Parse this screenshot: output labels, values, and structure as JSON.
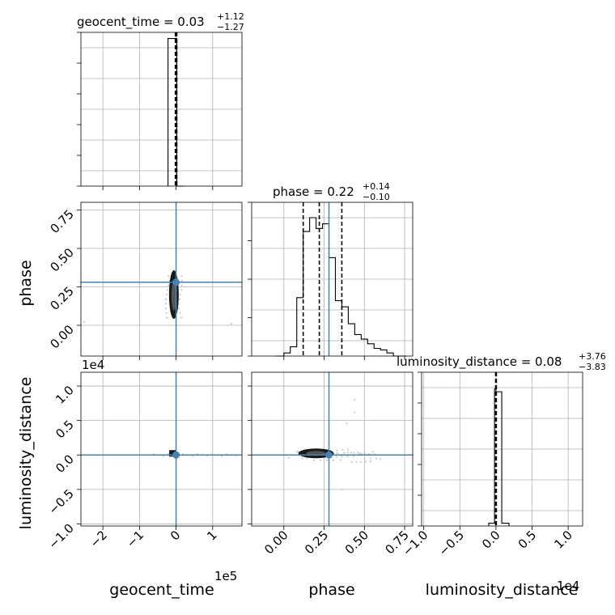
{
  "chart_data": {
    "type": "corner",
    "parameters": [
      "geocent_time",
      "phase",
      "luminosity_distance"
    ],
    "axis_labels": {
      "geocent_time": "geocent_time",
      "phase": "phase",
      "luminosity_distance": "luminosity_distance"
    },
    "offsets": {
      "geocent_time": "1e5",
      "luminosity_distance": "1e4",
      "luminosity_distance_y": "1e4"
    },
    "titles": [
      {
        "param": "geocent_time",
        "prefix": "geocent_time = 0.03",
        "plus": "+1.12",
        "minus": "−1.27"
      },
      {
        "param": "phase",
        "prefix": "phase = 0.22",
        "plus": "+0.14",
        "minus": "−0.10"
      },
      {
        "param": "luminosity_distance",
        "prefix": "luminosity_distance = 0.08",
        "plus": "+3.76",
        "minus": "−3.83"
      }
    ],
    "ranges": {
      "geocent_time": [
        -2.6,
        1.8
      ],
      "phase": [
        -0.2,
        0.8
      ],
      "luminosity_distance": [
        -1.03,
        1.2
      ]
    },
    "ticks": {
      "geocent_time": [
        "−2",
        "−1",
        "0",
        "1"
      ],
      "geocent_time_values": [
        -2,
        -1,
        0,
        1
      ],
      "phase_x": [
        "0.00",
        "0.25",
        "0.50",
        "0.75"
      ],
      "phase_x_values": [
        0.0,
        0.25,
        0.5,
        0.75
      ],
      "phase_y": [
        "0.00",
        "0.25",
        "0.50",
        "0.75"
      ],
      "phase_y_values": [
        0.0,
        0.25,
        0.5,
        0.75
      ],
      "luminosity_distance": [
        "−1.0",
        "−0.5",
        "0.0",
        "0.5",
        "1.0"
      ],
      "luminosity_distance_values": [
        -1.0,
        -0.5,
        0.0,
        0.5,
        1.0
      ]
    },
    "truths": {
      "geocent_time": 0.0,
      "phase": 0.28,
      "luminosity_distance": 0.0
    },
    "quantiles": {
      "geocent_time": [
        -0.02,
        0.0,
        0.02
      ],
      "phase": [
        0.12,
        0.22,
        0.36
      ],
      "luminosity_distance": [
        -0.005,
        0.0,
        0.005
      ]
    },
    "histograms": {
      "geocent_time": {
        "edges": [
          -0.22,
          -0.02,
          0.02,
          0.22
        ],
        "counts": [
          1.0,
          1.0,
          0.0
        ]
      },
      "phase": {
        "edges": [
          -0.05,
          0.0,
          0.04,
          0.08,
          0.12,
          0.16,
          0.2,
          0.24,
          0.28,
          0.32,
          0.36,
          0.4,
          0.44,
          0.48,
          0.52,
          0.56,
          0.6,
          0.64,
          0.68,
          0.72,
          0.76
        ],
        "counts": [
          0.0,
          0.02,
          0.06,
          0.38,
          0.81,
          0.9,
          0.83,
          0.86,
          0.64,
          0.36,
          0.32,
          0.21,
          0.14,
          0.11,
          0.08,
          0.05,
          0.04,
          0.02,
          0.0,
          0.0
        ]
      },
      "luminosity_distance": {
        "edges": [
          -0.1,
          -0.02,
          0.0,
          0.08,
          0.18
        ],
        "counts": [
          0.02,
          0.99,
          0.97,
          0.02
        ]
      }
    },
    "grid": true,
    "legend": "none"
  }
}
